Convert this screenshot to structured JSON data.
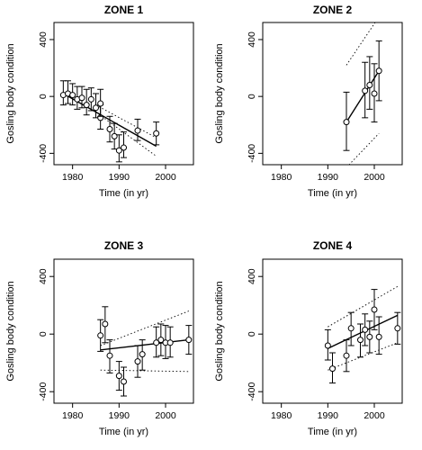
{
  "chart_data": [
    {
      "type": "scatter",
      "title": "ZONE 1",
      "xlabel": "Time (in yr)",
      "ylabel": "Gosling body condition",
      "xlim": [
        1976,
        2006
      ],
      "ylim": [
        -480,
        520
      ],
      "xticks": [
        1980,
        1990,
        2000
      ],
      "yticks": [
        -400,
        0,
        400
      ],
      "points": [
        {
          "x": 1978,
          "y": 10,
          "lo": -60,
          "hi": 110
        },
        {
          "x": 1979,
          "y": 20,
          "lo": -50,
          "hi": 110
        },
        {
          "x": 1980,
          "y": 10,
          "lo": -60,
          "hi": 90
        },
        {
          "x": 1981,
          "y": -20,
          "lo": -90,
          "hi": 70
        },
        {
          "x": 1982,
          "y": -10,
          "lo": -80,
          "hi": 70
        },
        {
          "x": 1983,
          "y": -60,
          "lo": -130,
          "hi": 50
        },
        {
          "x": 1984,
          "y": -20,
          "lo": -100,
          "hi": 60
        },
        {
          "x": 1985,
          "y": -80,
          "lo": -150,
          "hi": 20
        },
        {
          "x": 1986,
          "y": -150,
          "lo": -230,
          "hi": -60
        },
        {
          "x": 1986,
          "y": -50,
          "lo": -140,
          "hi": 50
        },
        {
          "x": 1988,
          "y": -230,
          "lo": -320,
          "hi": -140
        },
        {
          "x": 1989,
          "y": -280,
          "lo": -370,
          "hi": -190
        },
        {
          "x": 1990,
          "y": -380,
          "lo": -460,
          "hi": -270
        },
        {
          "x": 1991,
          "y": -360,
          "lo": -430,
          "hi": -250
        },
        {
          "x": 1994,
          "y": -240,
          "lo": -310,
          "hi": -160
        },
        {
          "x": 1998,
          "y": -260,
          "lo": -340,
          "hi": -180
        }
      ],
      "fit": {
        "x": [
          1978,
          1998
        ],
        "y": [
          20,
          -350
        ]
      },
      "ci_upper": {
        "x": [
          1985,
          1998
        ],
        "y": [
          -60,
          -290
        ]
      },
      "ci_lower": {
        "x": [
          1985,
          1998
        ],
        "y": [
          -110,
          -420
        ]
      }
    },
    {
      "type": "scatter",
      "title": "ZONE 2",
      "xlabel": "Time (in yr)",
      "ylabel": "Gosling body condition",
      "xlim": [
        1976,
        2006
      ],
      "ylim": [
        -480,
        520
      ],
      "xticks": [
        1980,
        1990,
        2000
      ],
      "yticks": [
        -400,
        0,
        400
      ],
      "points": [
        {
          "x": 1994,
          "y": -180,
          "lo": -380,
          "hi": 30
        },
        {
          "x": 1998,
          "y": 40,
          "lo": -150,
          "hi": 240
        },
        {
          "x": 1999,
          "y": 80,
          "lo": -90,
          "hi": 280
        },
        {
          "x": 2000,
          "y": 20,
          "lo": -180,
          "hi": 230
        },
        {
          "x": 2001,
          "y": 180,
          "lo": -30,
          "hi": 390
        }
      ],
      "fit": {
        "x": [
          1994,
          2001
        ],
        "y": [
          -180,
          180
        ]
      },
      "ci_upper": {
        "x": [
          1994,
          2001
        ],
        "y": [
          220,
          560
        ]
      },
      "ci_lower": {
        "x": [
          1994,
          2001
        ],
        "y": [
          -500,
          -260
        ]
      }
    },
    {
      "type": "scatter",
      "title": "ZONE 3",
      "xlabel": "Time (in yr)",
      "ylabel": "Gosling body condition",
      "xlim": [
        1976,
        2006
      ],
      "ylim": [
        -480,
        520
      ],
      "xticks": [
        1980,
        1990,
        2000
      ],
      "yticks": [
        -400,
        0,
        400
      ],
      "points": [
        {
          "x": 1986,
          "y": -10,
          "lo": -120,
          "hi": 100
        },
        {
          "x": 1987,
          "y": 70,
          "lo": -60,
          "hi": 190
        },
        {
          "x": 1988,
          "y": -150,
          "lo": -270,
          "hi": -40
        },
        {
          "x": 1990,
          "y": -290,
          "lo": -390,
          "hi": -190
        },
        {
          "x": 1991,
          "y": -330,
          "lo": -430,
          "hi": -230
        },
        {
          "x": 1994,
          "y": -190,
          "lo": -300,
          "hi": -80
        },
        {
          "x": 1995,
          "y": -140,
          "lo": -250,
          "hi": -40
        },
        {
          "x": 1998,
          "y": -60,
          "lo": -160,
          "hi": 50
        },
        {
          "x": 1999,
          "y": -40,
          "lo": -150,
          "hi": 70
        },
        {
          "x": 2000,
          "y": -60,
          "lo": -170,
          "hi": 60
        },
        {
          "x": 2001,
          "y": -60,
          "lo": -160,
          "hi": 50
        },
        {
          "x": 2005,
          "y": -40,
          "lo": -140,
          "hi": 60
        }
      ],
      "fit": {
        "x": [
          1986,
          2005
        ],
        "y": [
          -110,
          -40
        ]
      },
      "ci_upper": {
        "x": [
          1986,
          2005
        ],
        "y": [
          -80,
          160
        ]
      },
      "ci_lower": {
        "x": [
          1986,
          2005
        ],
        "y": [
          -250,
          -260
        ]
      }
    },
    {
      "type": "scatter",
      "title": "ZONE 4",
      "xlabel": "Time (in yr)",
      "ylabel": "Gosling body condition",
      "xlim": [
        1976,
        2006
      ],
      "ylim": [
        -480,
        520
      ],
      "xticks": [
        1980,
        1990,
        2000
      ],
      "yticks": [
        -400,
        0,
        400
      ],
      "points": [
        {
          "x": 1990,
          "y": -80,
          "lo": -180,
          "hi": 30
        },
        {
          "x": 1991,
          "y": -240,
          "lo": -340,
          "hi": -130
        },
        {
          "x": 1994,
          "y": -150,
          "lo": -260,
          "hi": -40
        },
        {
          "x": 1995,
          "y": 40,
          "lo": -80,
          "hi": 150
        },
        {
          "x": 1997,
          "y": -40,
          "lo": -160,
          "hi": 70
        },
        {
          "x": 1998,
          "y": 30,
          "lo": -80,
          "hi": 140
        },
        {
          "x": 1999,
          "y": -20,
          "lo": -130,
          "hi": 90
        },
        {
          "x": 2000,
          "y": 170,
          "lo": 30,
          "hi": 310
        },
        {
          "x": 2001,
          "y": -20,
          "lo": -140,
          "hi": 120
        },
        {
          "x": 2005,
          "y": 40,
          "lo": -70,
          "hi": 150
        }
      ],
      "fit": {
        "x": [
          1990,
          2005
        ],
        "y": [
          -100,
          130
        ]
      },
      "ci_upper": {
        "x": [
          1990,
          2005
        ],
        "y": [
          50,
          330
        ]
      },
      "ci_lower": {
        "x": [
          1990,
          2005
        ],
        "y": [
          -250,
          -60
        ]
      }
    }
  ]
}
